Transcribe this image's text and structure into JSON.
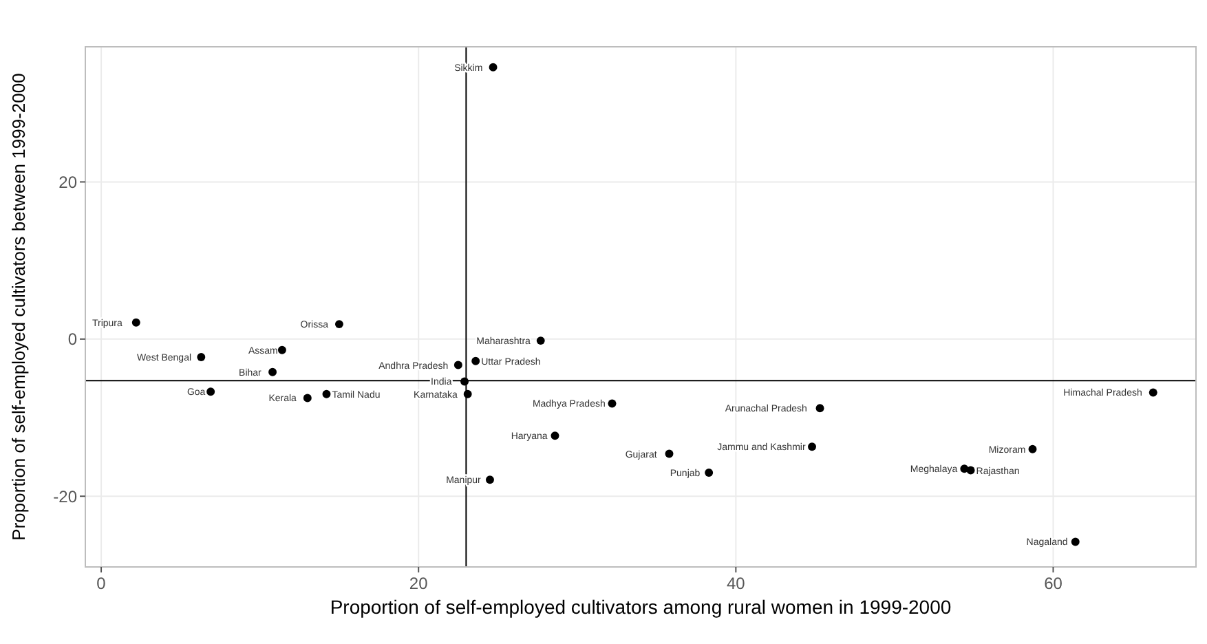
{
  "chart_data": {
    "type": "scatter",
    "xlabel": "Proportion of self-employed cultivators among rural women in 1999-2000",
    "ylabel": "Proportion of self-employed cultivators between 1999-2000",
    "x": [
      24.7,
      2.2,
      15.0,
      27.7,
      6.3,
      11.4,
      10.8,
      23.6,
      22.5,
      22.9,
      6.9,
      14.2,
      13.0,
      23.1,
      32.2,
      28.6,
      35.8,
      24.5,
      38.3,
      45.3,
      44.8,
      54.4,
      54.8,
      58.7,
      66.3,
      61.4
    ],
    "series": [
      {
        "color": "#000000",
        "values": [
          34.6,
          2.1,
          1.9,
          -0.2,
          -2.3,
          -1.4,
          -4.2,
          -2.8,
          -3.3,
          -5.4,
          -6.7,
          -7.0,
          -7.5,
          -7.0,
          -8.2,
          -12.3,
          -14.6,
          -17.9,
          -17.0,
          -8.8,
          -13.7,
          -16.5,
          -16.7,
          -14.0,
          -6.8,
          -25.8
        ]
      }
    ],
    "annotations": [
      {
        "text": "Sikkim",
        "x": 24.7,
        "y": 34.6
      },
      {
        "text": "Tripura",
        "x": 2.2,
        "y": 2.1
      },
      {
        "text": "Orissa",
        "x": 15.0,
        "y": 1.9
      },
      {
        "text": "Maharashtra",
        "x": 27.7,
        "y": -0.2
      },
      {
        "text": "West Bengal",
        "x": 6.3,
        "y": -2.3
      },
      {
        "text": "Assam",
        "x": 11.4,
        "y": -1.4
      },
      {
        "text": "Bihar",
        "x": 10.8,
        "y": -4.2
      },
      {
        "text": "Uttar Pradesh",
        "x": 23.6,
        "y": -2.8
      },
      {
        "text": "Andhra Pradesh",
        "x": 22.5,
        "y": -3.3
      },
      {
        "text": "India",
        "x": 22.9,
        "y": -5.4
      },
      {
        "text": "Goa",
        "x": 6.9,
        "y": -6.7
      },
      {
        "text": "Tamil Nadu",
        "x": 14.2,
        "y": -7.0
      },
      {
        "text": "Kerala",
        "x": 13.0,
        "y": -7.5
      },
      {
        "text": "Karnataka",
        "x": 23.1,
        "y": -7.0
      },
      {
        "text": "Madhya Pradesh",
        "x": 32.2,
        "y": -8.2
      },
      {
        "text": "Haryana",
        "x": 28.6,
        "y": -12.3
      },
      {
        "text": "Gujarat",
        "x": 35.8,
        "y": -14.6
      },
      {
        "text": "Manipur",
        "x": 24.5,
        "y": -17.9
      },
      {
        "text": "Punjab",
        "x": 38.3,
        "y": -17.0
      },
      {
        "text": "Arunachal Pradesh",
        "x": 45.3,
        "y": -8.8
      },
      {
        "text": "Jammu and Kashmir",
        "x": 44.8,
        "y": -13.7
      },
      {
        "text": "Meghalaya",
        "x": 54.4,
        "y": -16.5
      },
      {
        "text": "Rajasthan",
        "x": 54.8,
        "y": -16.7
      },
      {
        "text": "Mizoram",
        "x": 58.7,
        "y": -14.0
      },
      {
        "text": "Himachal Pradesh",
        "x": 66.3,
        "y": -6.8
      },
      {
        "text": "Nagaland",
        "x": 61.4,
        "y": -25.8
      }
    ],
    "ref_lines": [
      {
        "axis": "x",
        "value": 23
      },
      {
        "axis": "y",
        "value": -5.3
      }
    ],
    "xlim": [
      -1,
      69
    ],
    "ylim": [
      -29,
      37.2
    ],
    "xticks": [
      0,
      20,
      40,
      60
    ],
    "yticks": [
      -20,
      0,
      20
    ],
    "grid": true,
    "marker": "circle"
  }
}
